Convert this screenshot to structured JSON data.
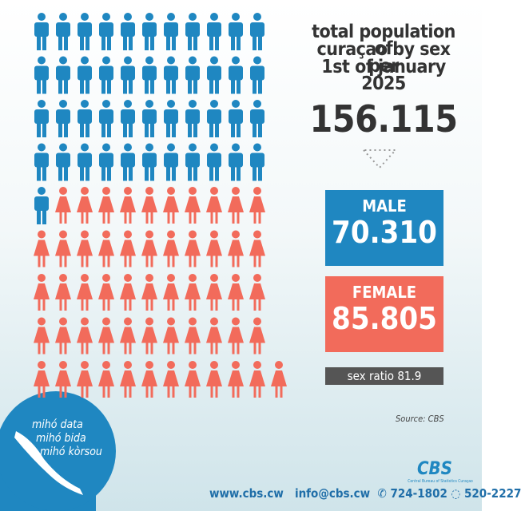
{
  "heading": {
    "lines": [
      "total population of",
      "curaçao by sex per",
      "1st of january 2025"
    ],
    "total": "156.115"
  },
  "male": {
    "label": "MALE",
    "value": "70.310"
  },
  "female": {
    "label": "FEMALE",
    "value": "85.805"
  },
  "sex_ratio": "sex ratio 81.9",
  "pictogram": {
    "male_icons": 45,
    "female_icons": 55,
    "male_color": "#1f87c1",
    "female_color": "#f26b5b"
  },
  "source": "Source: CBS",
  "slogan": [
    "mihó data",
    "mihó bida",
    "mihó kòrsou"
  ],
  "footer": {
    "website": "www.cbs.cw",
    "email": "info@cbs.cw",
    "phone": "724-1802",
    "whatsapp": "520-2227",
    "logo": "CBS",
    "logo_subtitle": "Central Bureau of Statistics Curaçao"
  }
}
